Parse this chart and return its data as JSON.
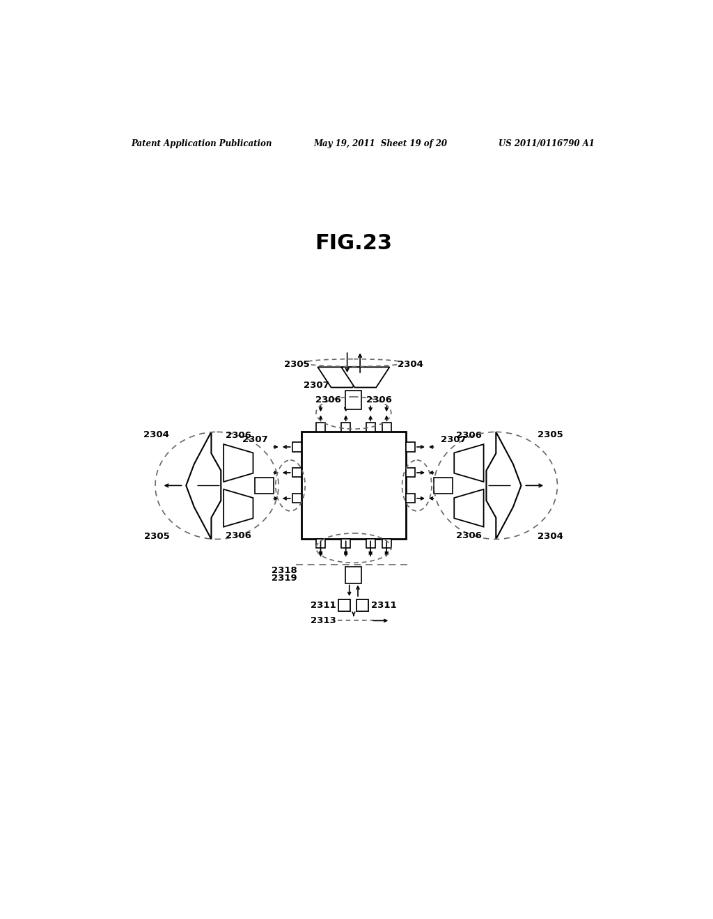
{
  "header_left": "Patent Application Publication",
  "header_mid": "May 19, 2011  Sheet 19 of 20",
  "header_right": "US 2011/0116790 A1",
  "fig_title": "FIG.23",
  "bg_color": "#ffffff",
  "line_color": "#000000",
  "dashed_color": "#666666"
}
